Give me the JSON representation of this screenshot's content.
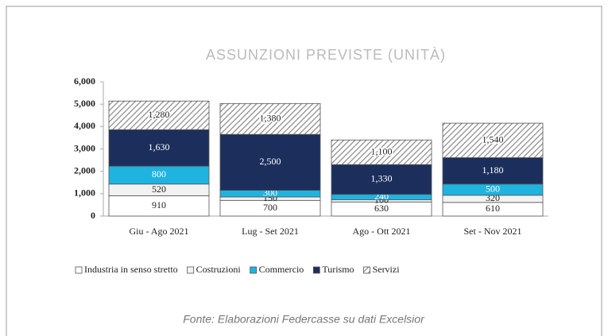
{
  "chart_data": {
    "type": "stacked_bar",
    "title": "ASSUNZIONI PREVISTE (UNITÀ)",
    "categories": [
      "Giu - Ago 2021",
      "Lug - Set 2021",
      "Ago - Ott 2021",
      "Set - Nov 2021"
    ],
    "series": [
      {
        "name": "Industria in senso stretto",
        "color": "#ffffff",
        "values": [
          910,
          700,
          630,
          610
        ],
        "value_labels": [
          "910",
          "700",
          "630",
          "610"
        ]
      },
      {
        "name": "Costruzioni",
        "color": "#f2f2f2",
        "values": [
          520,
          150,
          100,
          320
        ],
        "value_labels": [
          "520",
          "150",
          "100",
          "320"
        ]
      },
      {
        "name": "Commercio",
        "color": "#1fb3e0",
        "values": [
          800,
          300,
          240,
          500
        ],
        "value_labels": [
          "800",
          "300",
          "240",
          "500"
        ]
      },
      {
        "name": "Turismo",
        "color": "#1c2f5c",
        "values": [
          1630,
          2500,
          1330,
          1180
        ],
        "value_labels": [
          "1,630",
          "2,500",
          "1,330",
          "1,180"
        ]
      },
      {
        "name": "Servizi",
        "color": "#8c8c8c",
        "values": [
          1280,
          1380,
          1100,
          1540
        ],
        "value_labels": [
          "1,280",
          "1,380",
          "1,100",
          "1,540"
        ]
      }
    ],
    "ylim": [
      0,
      6000
    ],
    "yticks": [
      0,
      {
        "value": 1000,
        "label": "1,000"
      },
      {
        "value": 2000,
        "label": "2,000"
      },
      {
        "value": 3000,
        "label": "3,000"
      },
      {
        "value": 4000,
        "label": "4,000"
      },
      {
        "value": 5000,
        "label": "5,000"
      },
      {
        "value": 6000,
        "label": "6,000"
      }
    ],
    "legend": "bottom",
    "source": "Fonte: Elaborazioni Federcasse su dati Excelsior"
  }
}
